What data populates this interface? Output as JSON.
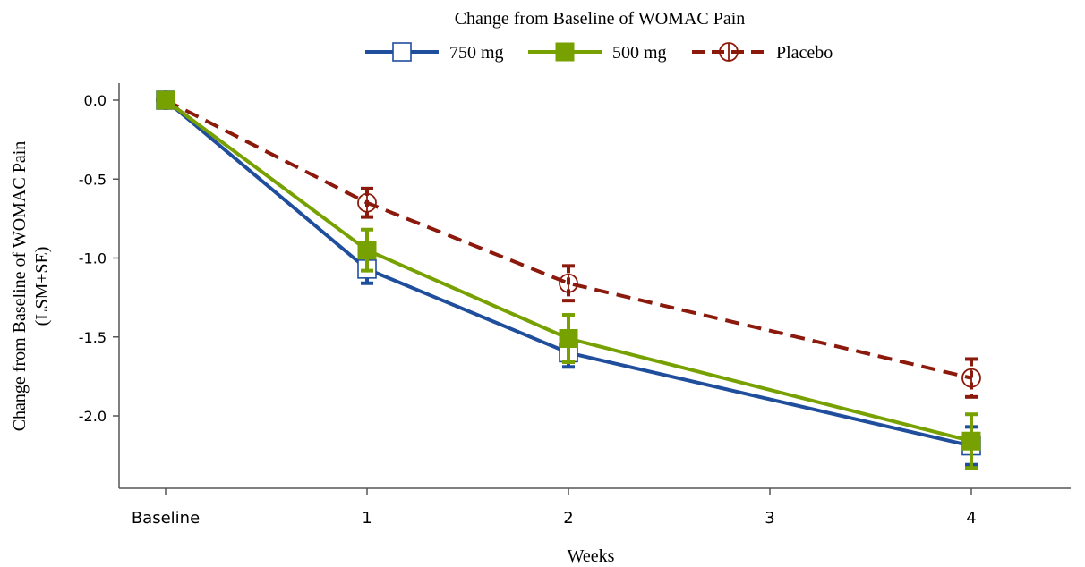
{
  "chart_data": {
    "type": "line",
    "title": "Change from Baseline of WOMAC Pain",
    "xlabel": "Weeks",
    "ylabel_lines": [
      "Change from Baseline of WOMAC Pain",
      "(LSM±SE)"
    ],
    "categories": [
      "Baseline",
      "1",
      "2",
      "3",
      "4"
    ],
    "x": [
      0,
      1,
      2,
      4
    ],
    "ylim": [
      -2.45,
      0.1
    ],
    "yticks": [
      0.0,
      -0.5,
      -1.0,
      -1.5,
      -2.0
    ],
    "ytick_labels": [
      "0.0",
      "-0.5",
      "-1.0",
      "-1.5",
      "-2.0"
    ],
    "grid": false,
    "legend_position": "top",
    "series": [
      {
        "name": "750 mg",
        "color": "#1f4e9c",
        "marker": "open-square",
        "dashed": false,
        "values": [
          0.0,
          -1.07,
          -1.6,
          -2.19
        ],
        "se": [
          0.0,
          0.09,
          0.09,
          0.12
        ]
      },
      {
        "name": "500 mg",
        "color": "#77a100",
        "marker": "filled-square",
        "dashed": false,
        "values": [
          0.0,
          -0.95,
          -1.51,
          -2.16
        ],
        "se": [
          0.0,
          0.13,
          0.15,
          0.17
        ]
      },
      {
        "name": "Placebo",
        "color": "#8b1a0c",
        "marker": "open-circle",
        "dashed": true,
        "values": [
          0.0,
          -0.65,
          -1.16,
          -1.76
        ],
        "se": [
          0.0,
          0.09,
          0.11,
          0.12
        ]
      }
    ]
  }
}
